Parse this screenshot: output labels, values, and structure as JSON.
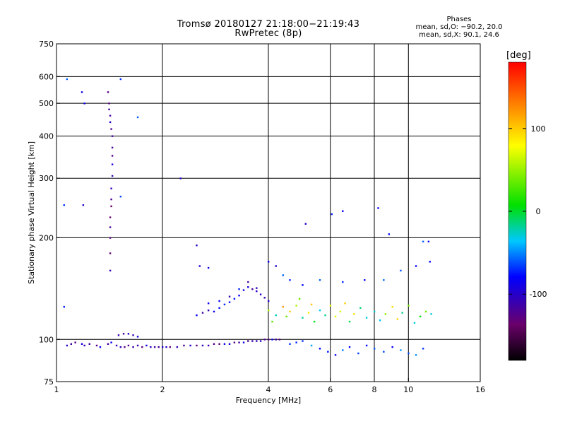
{
  "header": {
    "title_line1": "Tromsø 20180127 21:18:00−21:19:43",
    "title_line2": "RwPretec (8p)"
  },
  "stats": {
    "heading": "Phases",
    "line_o": "mean, sd,O: −90.2, 20.0",
    "line_x": "mean, sd,X:  90.1, 24.6"
  },
  "chart_data": {
    "type": "scatter",
    "xlabel": "Frequency [MHz]",
    "ylabel": "Stationary phase Virtual Height [km]",
    "x_scale": "log",
    "y_scale": "log",
    "xlim": [
      1,
      16
    ],
    "ylim": [
      75,
      750
    ],
    "x_ticks": [
      1,
      2,
      4,
      6,
      8,
      10,
      16
    ],
    "y_ticks": [
      75,
      100,
      200,
      300,
      400,
      500,
      600,
      750
    ],
    "x_gridlines": [
      2,
      4,
      6,
      8,
      10
    ],
    "y_gridlines": [
      100,
      200,
      300,
      400,
      500,
      600
    ],
    "colorbar": {
      "label": "[deg]",
      "range": [
        -180,
        180
      ],
      "ticks": [
        -100,
        0,
        100
      ],
      "colormap": "rainbow: black → purple → blue → cyan → green → yellow → orange → red"
    },
    "series": [
      {
        "desc": "O-mode trace ~100 km",
        "phase": -110,
        "points": [
          [
            1.48,
            96
          ],
          [
            1.52,
            95
          ],
          [
            1.56,
            95
          ],
          [
            1.6,
            96
          ],
          [
            1.65,
            95
          ],
          [
            1.7,
            96
          ],
          [
            1.75,
            95
          ],
          [
            1.8,
            96
          ],
          [
            1.85,
            95
          ],
          [
            1.9,
            95
          ],
          [
            1.95,
            95
          ],
          [
            2.0,
            95
          ],
          [
            2.05,
            95
          ],
          [
            2.1,
            95
          ],
          [
            2.2,
            95
          ],
          [
            2.3,
            96
          ],
          [
            2.4,
            96
          ],
          [
            2.5,
            96
          ],
          [
            2.6,
            96
          ],
          [
            2.7,
            96
          ],
          [
            2.8,
            97
          ],
          [
            2.9,
            97
          ],
          [
            3.0,
            97
          ],
          [
            3.1,
            97
          ],
          [
            3.2,
            98
          ],
          [
            3.3,
            98
          ],
          [
            3.4,
            98
          ],
          [
            3.5,
            99
          ],
          [
            3.6,
            99
          ],
          [
            3.7,
            99
          ],
          [
            3.8,
            99
          ],
          [
            3.9,
            100
          ],
          [
            4.0,
            100
          ],
          [
            4.1,
            100
          ],
          [
            4.2,
            100
          ],
          [
            4.3,
            100
          ]
        ]
      },
      {
        "desc": "low-frequency echoes",
        "phase": -105,
        "points": [
          [
            1.07,
            96
          ],
          [
            1.1,
            97
          ],
          [
            1.13,
            98
          ],
          [
            1.18,
            97
          ],
          [
            1.2,
            96
          ],
          [
            1.24,
            97
          ],
          [
            1.3,
            96
          ],
          [
            1.33,
            95
          ],
          [
            1.4,
            97
          ],
          [
            1.43,
            98
          ],
          [
            1.5,
            103
          ],
          [
            1.55,
            104
          ],
          [
            1.6,
            104
          ],
          [
            1.65,
            103
          ],
          [
            1.7,
            102
          ]
        ]
      },
      {
        "desc": "vertical streak at ~1.42 MHz",
        "phase": -115,
        "points": [
          [
            1.42,
            160
          ],
          [
            1.42,
            180
          ],
          [
            1.42,
            200
          ],
          [
            1.42,
            215
          ],
          [
            1.42,
            230
          ],
          [
            1.43,
            248
          ],
          [
            1.43,
            260
          ],
          [
            1.43,
            280
          ],
          [
            1.44,
            305
          ],
          [
            1.44,
            330
          ],
          [
            1.44,
            350
          ],
          [
            1.44,
            370
          ],
          [
            1.44,
            400
          ],
          [
            1.43,
            420
          ],
          [
            1.42,
            440
          ],
          [
            1.42,
            460
          ],
          [
            1.41,
            480
          ],
          [
            1.41,
            500
          ],
          [
            1.4,
            540
          ]
        ]
      },
      {
        "desc": "upper trace 2.4–4 MHz",
        "phase": -95,
        "points": [
          [
            2.5,
            118
          ],
          [
            2.6,
            120
          ],
          [
            2.7,
            122
          ],
          [
            2.8,
            121
          ],
          [
            2.9,
            124
          ],
          [
            3.0,
            127
          ],
          [
            3.1,
            129
          ],
          [
            3.2,
            132
          ],
          [
            3.3,
            135
          ],
          [
            3.4,
            140
          ],
          [
            3.5,
            143
          ],
          [
            3.6,
            141
          ],
          [
            3.7,
            139
          ],
          [
            3.8,
            136
          ],
          [
            3.9,
            133
          ],
          [
            4.0,
            130
          ],
          [
            2.7,
            128
          ],
          [
            2.9,
            130
          ],
          [
            3.1,
            134
          ],
          [
            3.3,
            141
          ],
          [
            3.5,
            148
          ],
          [
            3.7,
            142
          ]
        ]
      },
      {
        "desc": "scattered echoes 4–11 MHz",
        "phase": 40,
        "points": [
          [
            4.0,
            122
          ],
          [
            4.1,
            113
          ],
          [
            4.2,
            118
          ],
          [
            4.4,
            125
          ],
          [
            4.5,
            117
          ],
          [
            4.6,
            121
          ],
          [
            4.8,
            126
          ],
          [
            4.9,
            132
          ],
          [
            5.0,
            116
          ],
          [
            5.2,
            120
          ],
          [
            5.3,
            127
          ],
          [
            5.4,
            113
          ],
          [
            5.6,
            122
          ],
          [
            5.8,
            118
          ],
          [
            6.0,
            126
          ],
          [
            6.2,
            117
          ],
          [
            6.4,
            121
          ],
          [
            6.6,
            128
          ],
          [
            6.8,
            113
          ],
          [
            7.0,
            119
          ],
          [
            7.3,
            124
          ],
          [
            7.6,
            116
          ],
          [
            8.0,
            121
          ],
          [
            8.3,
            114
          ],
          [
            8.6,
            119
          ],
          [
            9.0,
            125
          ],
          [
            9.3,
            115
          ],
          [
            9.6,
            120
          ],
          [
            10.0,
            126
          ],
          [
            10.4,
            112
          ],
          [
            10.8,
            117
          ],
          [
            11.2,
            121
          ],
          [
            11.6,
            119
          ]
        ]
      },
      {
        "desc": "lower-height scatter 4.5–11 MHz",
        "phase": -60,
        "points": [
          [
            4.6,
            97
          ],
          [
            4.8,
            98
          ],
          [
            5.0,
            99
          ],
          [
            5.3,
            96
          ],
          [
            5.6,
            94
          ],
          [
            5.9,
            92
          ],
          [
            6.2,
            90
          ],
          [
            6.5,
            93
          ],
          [
            6.8,
            95
          ],
          [
            7.2,
            91
          ],
          [
            7.6,
            96
          ],
          [
            8.0,
            94
          ],
          [
            8.5,
            92
          ],
          [
            9.0,
            95
          ],
          [
            9.5,
            93
          ],
          [
            10.0,
            91
          ],
          [
            10.5,
            90
          ],
          [
            11.0,
            94
          ]
        ]
      },
      {
        "desc": "isolated points",
        "phase": -80,
        "points": [
          [
            1.07,
            590
          ],
          [
            1.05,
            250
          ],
          [
            1.05,
            125
          ],
          [
            1.18,
            540
          ],
          [
            1.2,
            500
          ],
          [
            1.19,
            250
          ],
          [
            1.7,
            455
          ],
          [
            2.25,
            300
          ],
          [
            2.5,
            190
          ],
          [
            2.55,
            165
          ],
          [
            2.7,
            163
          ],
          [
            5.1,
            220
          ],
          [
            6.05,
            235
          ],
          [
            6.5,
            240
          ],
          [
            8.2,
            245
          ],
          [
            8.8,
            205
          ],
          [
            11.0,
            195
          ],
          [
            11.4,
            195
          ],
          [
            4.0,
            170
          ],
          [
            4.2,
            165
          ],
          [
            4.4,
            155
          ],
          [
            4.6,
            150
          ],
          [
            5.0,
            145
          ],
          [
            5.6,
            150
          ],
          [
            6.5,
            148
          ],
          [
            7.5,
            150
          ],
          [
            8.5,
            150
          ],
          [
            9.5,
            160
          ],
          [
            10.5,
            165
          ],
          [
            11.5,
            170
          ],
          [
            1.52,
            590
          ],
          [
            1.52,
            265
          ]
        ]
      }
    ]
  }
}
